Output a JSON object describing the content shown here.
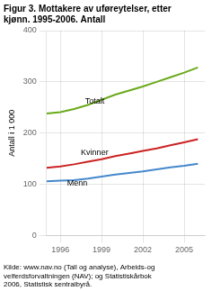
{
  "chart_data": {
    "type": "line",
    "title": [
      "Figur 3. Mottakere av uføreytelser, etter",
      "kjønn. 1995-2006. Antall"
    ],
    "y_label": "Antall i 1 000",
    "source": "Kilde: www.nav.no (Tall og analyse), Arbeids-og\nvelferdsforvaltningen (NAV); og Statistiskårbok\n2006, Statistisk sentralbyrå.",
    "x": [
      1995,
      1996,
      1997,
      1998,
      1999,
      2000,
      2001,
      2002,
      2003,
      2004,
      2005,
      2006
    ],
    "series": [
      {
        "name": "Totalt",
        "color": "#6aaa1a",
        "values": [
          238,
          241,
          247,
          255,
          265,
          275,
          283,
          291,
          300,
          309,
          318,
          328
        ]
      },
      {
        "name": "Kvinner",
        "color": "#cc2222",
        "values": [
          132,
          135,
          139,
          144,
          149,
          155,
          160,
          165,
          170,
          176,
          182,
          188
        ]
      },
      {
        "name": "Menn",
        "color": "#4488cc",
        "values": [
          106,
          107,
          108,
          111,
          115,
          119,
          122,
          125,
          129,
          133,
          136,
          140
        ]
      }
    ],
    "annotations": [
      {
        "text": "Totalt",
        "x": 1997.8,
        "y": 258
      },
      {
        "text": "Kvinner",
        "x": 1997.5,
        "y": 157
      },
      {
        "text": "Menn",
        "x": 1996.5,
        "y": 98
      }
    ],
    "xlim": [
      1995,
      2006.5
    ],
    "xticks": [
      1996,
      1999,
      2002,
      2005
    ],
    "ylim": [
      0,
      400
    ],
    "yticks": [
      0,
      100,
      200,
      300,
      400
    ],
    "grid": true
  }
}
